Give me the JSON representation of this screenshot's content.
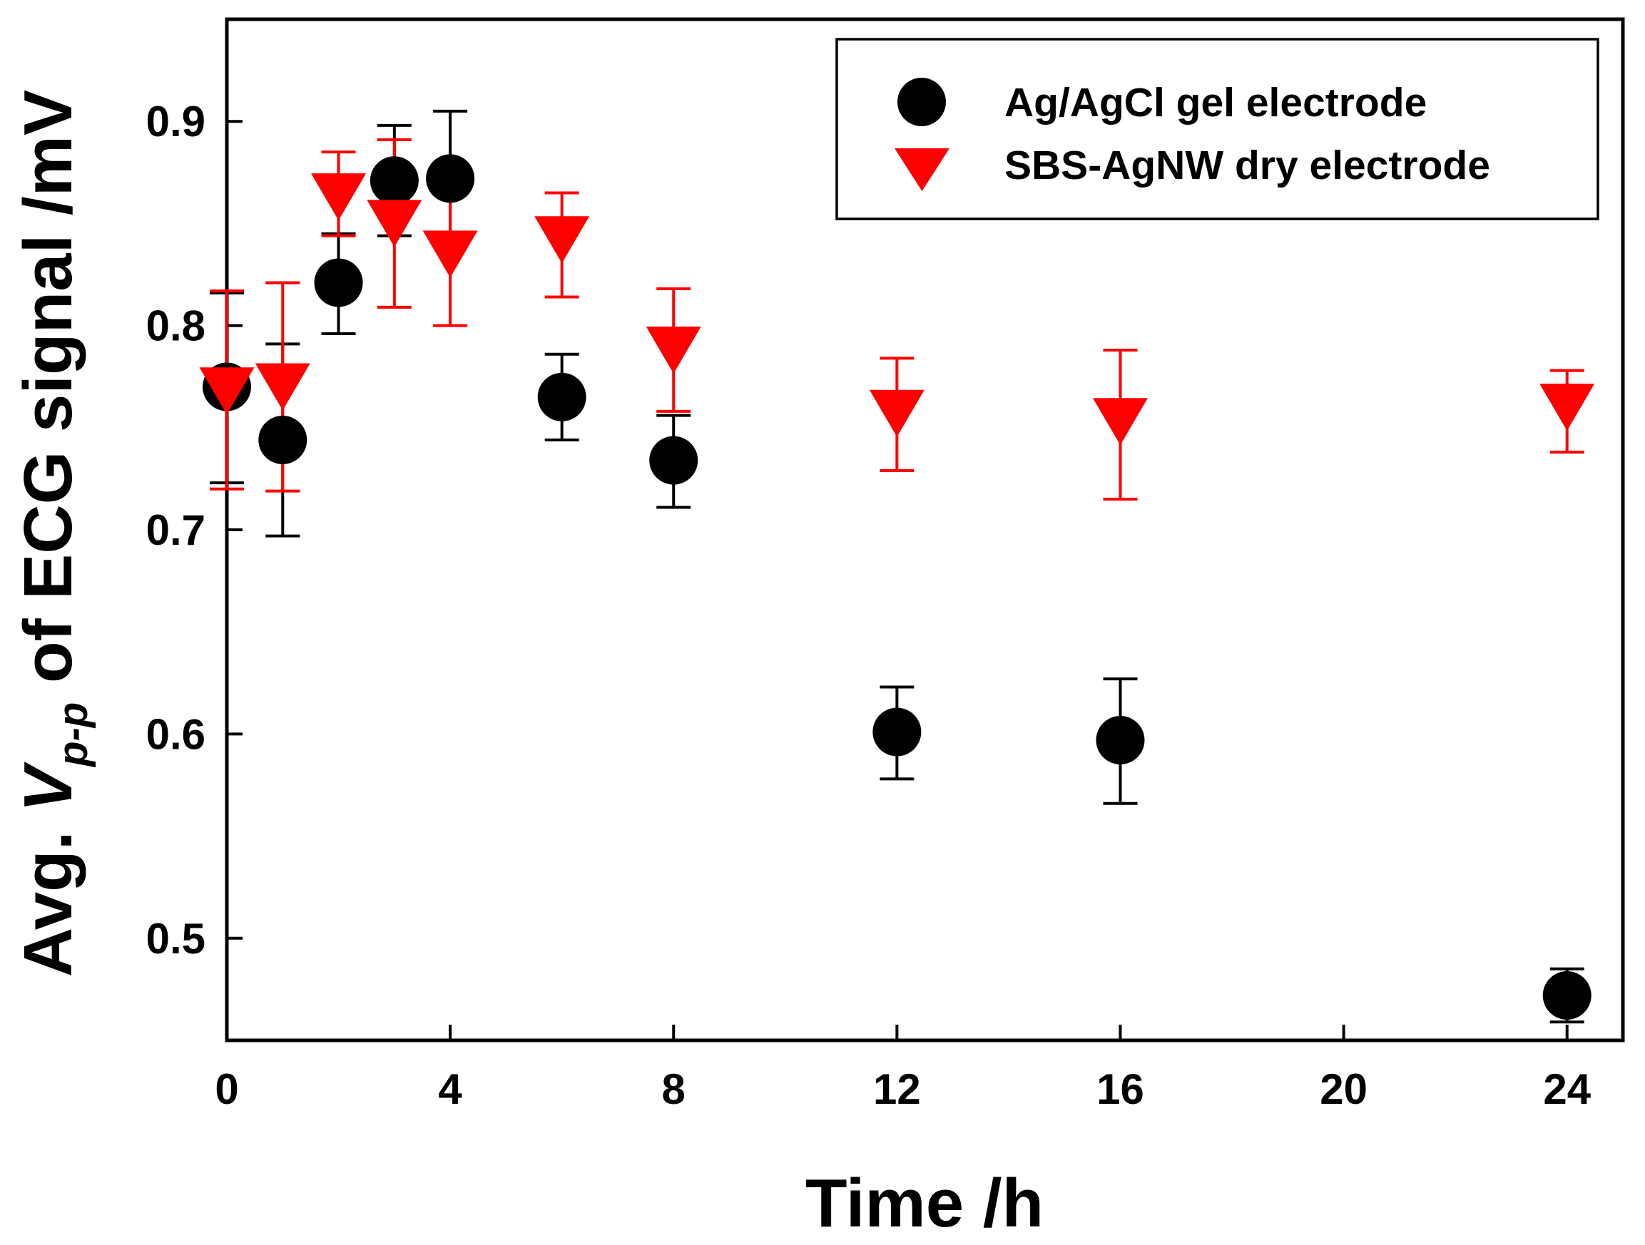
{
  "chart_data": {
    "type": "scatter",
    "title": "",
    "xlabel": "Time /h",
    "ylabel": {
      "prefix": "Avg. ",
      "symbol": "V",
      "subscript": "p-p",
      "suffix": " of ECG signal /mV"
    },
    "xlim": [
      0,
      25
    ],
    "ylim": [
      0.45,
      0.95
    ],
    "xticks": [
      0,
      4,
      8,
      12,
      16,
      20,
      24
    ],
    "yticks": [
      0.5,
      0.6,
      0.7,
      0.8,
      0.9
    ],
    "xtick_labels": [
      "0",
      "4",
      "8",
      "12",
      "16",
      "20",
      "24"
    ],
    "ytick_labels": [
      "0.5",
      "0.6",
      "0.7",
      "0.8",
      "0.9"
    ],
    "grid": false,
    "legend_position": "top-right",
    "series": [
      {
        "name": "Ag/AgCl gel electrode",
        "marker": "circle",
        "color": "#000000",
        "x": [
          0,
          1,
          2,
          3,
          4,
          6,
          8,
          12,
          16,
          24
        ],
        "y": [
          0.77,
          0.744,
          0.821,
          0.871,
          0.872,
          0.765,
          0.734,
          0.601,
          0.597,
          0.472
        ],
        "yerr_low": [
          0.723,
          0.697,
          0.796,
          0.844,
          0.845,
          0.744,
          0.711,
          0.578,
          0.566,
          0.459
        ],
        "yerr_high": [
          0.816,
          0.791,
          0.845,
          0.898,
          0.905,
          0.786,
          0.756,
          0.623,
          0.627,
          0.485
        ]
      },
      {
        "name": "SBS-AgNW dry electrode",
        "marker": "triangle-down",
        "color": "#ff0000",
        "x": [
          0,
          1,
          2,
          3,
          4,
          6,
          8,
          12,
          16,
          24
        ],
        "y": [
          0.768,
          0.77,
          0.863,
          0.85,
          0.835,
          0.842,
          0.788,
          0.757,
          0.753,
          0.76
        ],
        "yerr_low": [
          0.72,
          0.719,
          0.844,
          0.809,
          0.8,
          0.814,
          0.758,
          0.729,
          0.715,
          0.738
        ],
        "yerr_high": [
          0.817,
          0.821,
          0.885,
          0.891,
          0.869,
          0.865,
          0.818,
          0.784,
          0.788,
          0.778
        ]
      }
    ]
  }
}
